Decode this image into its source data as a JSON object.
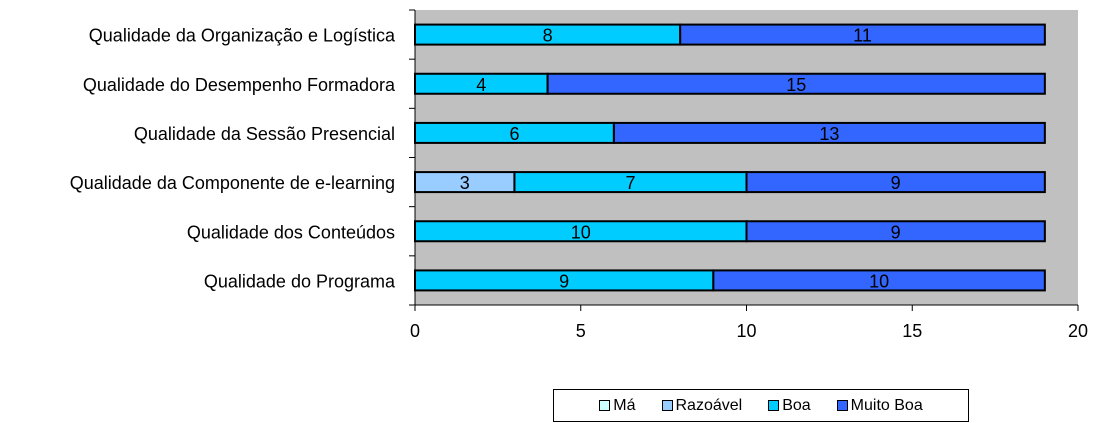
{
  "chart_data": {
    "type": "bar",
    "orientation": "horizontal",
    "stacked": true,
    "categories": [
      "Qualidade da Organização e Logística",
      "Qualidade do Desempenho Formadora",
      "Qualidade da Sessão Presencial",
      "Qualidade da Componente de e-learning",
      "Qualidade dos Conteúdos",
      "Qualidade do Programa"
    ],
    "series": [
      {
        "name": "Má",
        "color": "#CCFFFF",
        "values": [
          0,
          0,
          0,
          0,
          0,
          0
        ]
      },
      {
        "name": "Razoável",
        "color": "#99CCFF",
        "values": [
          0,
          0,
          0,
          3,
          0,
          0
        ]
      },
      {
        "name": "Boa",
        "color": "#00CCFF",
        "values": [
          8,
          4,
          6,
          7,
          10,
          9
        ]
      },
      {
        "name": "Muito Boa",
        "color": "#3366FF",
        "values": [
          11,
          15,
          13,
          9,
          9,
          10
        ]
      }
    ],
    "xlim": [
      0,
      20
    ],
    "xticks": [
      "0",
      "5",
      "10",
      "15",
      "20"
    ],
    "plot_background": "#C0C0C0",
    "grid": false,
    "legend": "bottom",
    "title": "",
    "xlabel": "",
    "ylabel": ""
  }
}
